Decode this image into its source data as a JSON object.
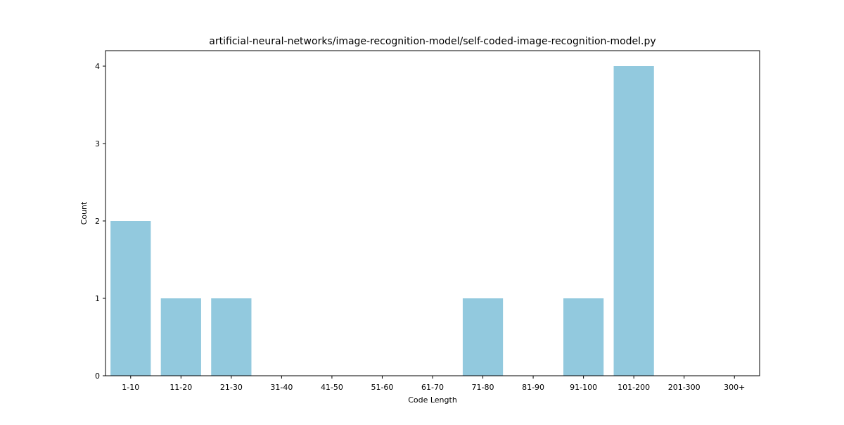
{
  "chart_data": {
    "type": "bar",
    "title": "artificial-neural-networks/image-recognition-model/self-coded-image-recognition-model.py",
    "xlabel": "Code Length",
    "ylabel": "Count",
    "categories": [
      "1-10",
      "11-20",
      "21-30",
      "31-40",
      "41-50",
      "51-60",
      "61-70",
      "71-80",
      "81-90",
      "91-100",
      "101-200",
      "201-300",
      "300+"
    ],
    "values": [
      2,
      1,
      1,
      0,
      0,
      0,
      0,
      1,
      0,
      1,
      4,
      0,
      0
    ],
    "ylim": [
      0,
      4.2
    ],
    "yticks": [
      0,
      1,
      2,
      3,
      4
    ],
    "bar_color": "#92c9de",
    "grid": false,
    "legend": "none"
  }
}
